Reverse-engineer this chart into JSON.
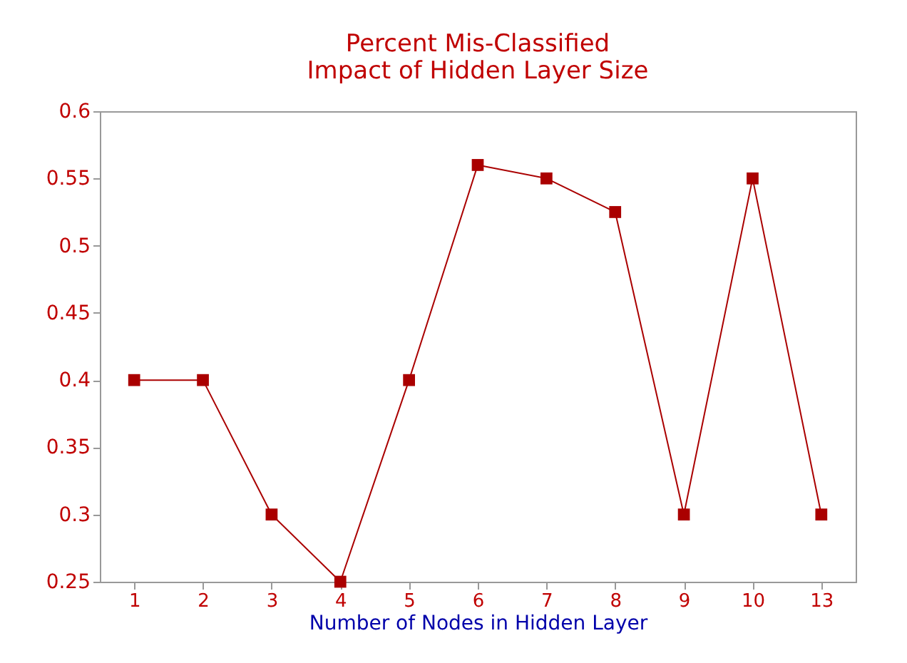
{
  "chart_data": {
    "type": "line",
    "title": "Percent Mis-Classified\nImpact of Hidden Layer Size",
    "xlabel": "Number of Nodes in Hidden Layer",
    "categories": [
      "1",
      "2",
      "3",
      "4",
      "5",
      "6",
      "7",
      "8",
      "9",
      "10",
      "13"
    ],
    "series": [
      {
        "color": "#aa0000",
        "values": [
          0.4,
          0.4,
          0.3,
          0.25,
          0.4,
          0.56,
          0.55,
          0.525,
          0.3,
          0.55,
          0.3
        ]
      }
    ],
    "ylim": [
      0.25,
      0.6
    ],
    "yticks": [
      0.25,
      0.3,
      0.35,
      0.4,
      0.45,
      0.5,
      0.55,
      0.6
    ],
    "marker": "square",
    "line_style": "solid",
    "grid": false,
    "legend": false
  }
}
